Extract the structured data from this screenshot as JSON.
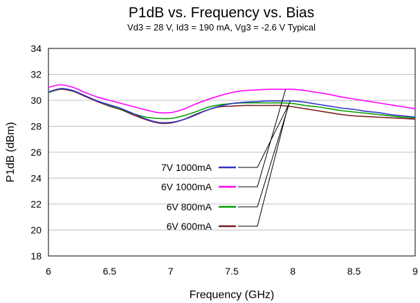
{
  "chart_data": {
    "type": "line",
    "title": "P1dB vs. Frequency vs. Bias",
    "subtitle": "Vd3 = 28 V, Id3 = 190 mA, Vg3 = -2.6 V Typical",
    "xlabel": "Frequency (GHz)",
    "ylabel": "P1dB (dBm)",
    "xlim": [
      6,
      9
    ],
    "ylim": [
      18,
      34
    ],
    "xticks": [
      6,
      6.5,
      7,
      7.5,
      8,
      8.5,
      9
    ],
    "xtick_labels": [
      "6",
      "6.5",
      "7",
      "7.5",
      "8",
      "8.5",
      "9"
    ],
    "yticks": [
      18,
      20,
      22,
      24,
      26,
      28,
      30,
      32,
      34
    ],
    "ytick_labels": [
      "18",
      "20",
      "22",
      "24",
      "26",
      "28",
      "30",
      "32",
      "34"
    ],
    "grid": {
      "horizontal": true,
      "vertical": false
    },
    "legend_position": "center (with leader lines to curves)",
    "series": [
      {
        "name": "7V 1000mA",
        "color": "#3333cc",
        "x": [
          6.0,
          6.1,
          6.2,
          6.3,
          6.4,
          6.5,
          6.6,
          6.7,
          6.8,
          6.9,
          7.0,
          7.1,
          7.2,
          7.3,
          7.4,
          7.5,
          7.6,
          7.7,
          7.8,
          7.9,
          8.0,
          8.1,
          8.2,
          8.3,
          8.4,
          8.5,
          8.6,
          8.7,
          8.8,
          8.9,
          9.0
        ],
        "y": [
          30.65,
          30.9,
          30.75,
          30.35,
          29.95,
          29.65,
          29.35,
          28.95,
          28.55,
          28.3,
          28.3,
          28.5,
          28.85,
          29.25,
          29.55,
          29.75,
          29.85,
          29.9,
          29.95,
          29.95,
          29.95,
          29.85,
          29.7,
          29.55,
          29.4,
          29.3,
          29.15,
          29.05,
          28.9,
          28.8,
          28.7
        ]
      },
      {
        "name": "6V 1000mA",
        "color": "#ff00ff",
        "x": [
          6.0,
          6.1,
          6.2,
          6.3,
          6.4,
          6.5,
          6.6,
          6.7,
          6.8,
          6.9,
          7.0,
          7.1,
          7.2,
          7.3,
          7.4,
          7.5,
          7.6,
          7.7,
          7.8,
          7.9,
          8.0,
          8.1,
          8.2,
          8.3,
          8.4,
          8.5,
          8.6,
          8.7,
          8.8,
          8.9,
          9.0
        ],
        "y": [
          31.0,
          31.2,
          31.0,
          30.6,
          30.25,
          30.0,
          29.75,
          29.5,
          29.25,
          29.05,
          29.05,
          29.3,
          29.7,
          30.05,
          30.35,
          30.6,
          30.75,
          30.8,
          30.85,
          30.85,
          30.85,
          30.75,
          30.6,
          30.45,
          30.25,
          30.1,
          29.95,
          29.8,
          29.65,
          29.5,
          29.35
        ]
      },
      {
        "name": "6V 800mA",
        "color": "#00a000",
        "x": [
          6.0,
          6.1,
          6.2,
          6.3,
          6.4,
          6.5,
          6.6,
          6.7,
          6.8,
          6.9,
          7.0,
          7.1,
          7.2,
          7.3,
          7.4,
          7.5,
          7.6,
          7.7,
          7.8,
          7.9,
          8.0,
          8.1,
          8.2,
          8.3,
          8.4,
          8.5,
          8.6,
          8.7,
          8.8,
          8.9,
          9.0
        ],
        "y": [
          30.6,
          30.9,
          30.75,
          30.35,
          29.95,
          29.6,
          29.3,
          28.95,
          28.7,
          28.6,
          28.6,
          28.8,
          29.1,
          29.45,
          29.65,
          29.75,
          29.8,
          29.8,
          29.8,
          29.8,
          29.75,
          29.6,
          29.5,
          29.35,
          29.2,
          29.1,
          29.0,
          28.9,
          28.8,
          28.7,
          28.65
        ]
      },
      {
        "name": "6V 600mA",
        "color": "#7a1c1c",
        "x": [
          6.0,
          6.1,
          6.2,
          6.3,
          6.4,
          6.5,
          6.6,
          6.7,
          6.8,
          6.9,
          7.0,
          7.1,
          7.2,
          7.3,
          7.4,
          7.5,
          7.6,
          7.7,
          7.8,
          7.9,
          8.0,
          8.1,
          8.2,
          8.3,
          8.4,
          8.5,
          8.6,
          8.7,
          8.8,
          8.9,
          9.0
        ],
        "y": [
          30.6,
          30.85,
          30.7,
          30.3,
          29.9,
          29.55,
          29.25,
          28.85,
          28.5,
          28.25,
          28.25,
          28.5,
          28.9,
          29.25,
          29.5,
          29.55,
          29.6,
          29.6,
          29.6,
          29.6,
          29.5,
          29.35,
          29.2,
          29.05,
          28.9,
          28.8,
          28.75,
          28.7,
          28.65,
          28.6,
          28.55
        ]
      }
    ],
    "legend_leader_targets_x": [
      7.98,
      7.94,
      7.97,
      7.96
    ]
  }
}
